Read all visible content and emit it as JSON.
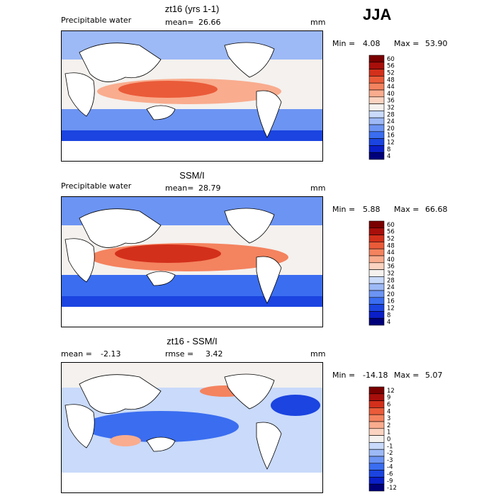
{
  "season": "JJA",
  "colors": {
    "pw_scale": [
      "#00007a",
      "#0a1fc8",
      "#1b44e0",
      "#3a6df0",
      "#6c94f3",
      "#9db9f6",
      "#c9dafa",
      "#f4f1ee",
      "#fbd3c1",
      "#f9ac8e",
      "#f4835f",
      "#ea5b39",
      "#d3301b",
      "#a80f0b",
      "#7a0000"
    ],
    "diff_scale": [
      "#00007a",
      "#0a1fc8",
      "#1b44e0",
      "#3a6df0",
      "#6c94f3",
      "#9db9f6",
      "#c9dafa",
      "#f4f1ee",
      "#fbd3c1",
      "#f9ac8e",
      "#f4835f",
      "#ea5b39",
      "#d3301b",
      "#a80f0b",
      "#7a0000"
    ]
  },
  "panels": [
    {
      "title": "zt16 (yrs 1-1)",
      "field_label": "Precipitable water",
      "stat_label": "mean=",
      "stat_value": "26.66",
      "stat2_label": "",
      "stat2_value": "",
      "units": "mm",
      "min_label": "Min =",
      "min_value": "4.08",
      "max_label": "Max =",
      "max_value": "53.90",
      "colorbar_ticks": [
        "60",
        "56",
        "52",
        "48",
        "44",
        "40",
        "36",
        "32",
        "28",
        "24",
        "20",
        "16",
        "12",
        "8",
        "4"
      ]
    },
    {
      "title": "SSM/I",
      "field_label": "Precipitable water",
      "stat_label": "mean=",
      "stat_value": "28.79",
      "stat2_label": "",
      "stat2_value": "",
      "units": "mm",
      "min_label": "Min =",
      "min_value": "5.88",
      "max_label": "Max =",
      "max_value": "66.68",
      "colorbar_ticks": [
        "60",
        "56",
        "52",
        "48",
        "44",
        "40",
        "36",
        "32",
        "28",
        "24",
        "20",
        "16",
        "12",
        "8",
        "4"
      ]
    },
    {
      "title": "zt16 - SSM/I",
      "field_label": "mean =",
      "stat_label": "",
      "stat_value": "-2.13",
      "stat2_label": "rmse =",
      "stat2_value": "3.42",
      "units": "mm",
      "min_label": "Min =",
      "min_value": "-14.18",
      "max_label": "Max =",
      "max_value": "5.07",
      "colorbar_ticks": [
        "12",
        "9",
        "6",
        "4",
        "3",
        "2",
        "1",
        "0",
        "-1",
        "-2",
        "-3",
        "-4",
        "-6",
        "-9",
        "-12"
      ]
    }
  ],
  "chart_data": [
    {
      "type": "heatmap",
      "title": "zt16 (yrs 1-1)",
      "subtitle": "Precipitable water",
      "units": "mm",
      "mean": 26.66,
      "min": 4.08,
      "max": 53.9,
      "colorbar_levels": [
        4,
        8,
        12,
        16,
        20,
        24,
        28,
        32,
        36,
        40,
        44,
        48,
        52,
        56,
        60
      ]
    },
    {
      "type": "heatmap",
      "title": "SSM/I",
      "subtitle": "Precipitable water",
      "units": "mm",
      "mean": 28.79,
      "min": 5.88,
      "max": 66.68,
      "colorbar_levels": [
        4,
        8,
        12,
        16,
        20,
        24,
        28,
        32,
        36,
        40,
        44,
        48,
        52,
        56,
        60
      ]
    },
    {
      "type": "heatmap",
      "title": "zt16 - SSM/I",
      "units": "mm",
      "mean": -2.13,
      "rmse": 3.42,
      "min": -14.18,
      "max": 5.07,
      "colorbar_levels": [
        -12,
        -9,
        -6,
        -4,
        -3,
        -2,
        -1,
        0,
        1,
        2,
        3,
        4,
        6,
        9,
        12
      ]
    }
  ]
}
